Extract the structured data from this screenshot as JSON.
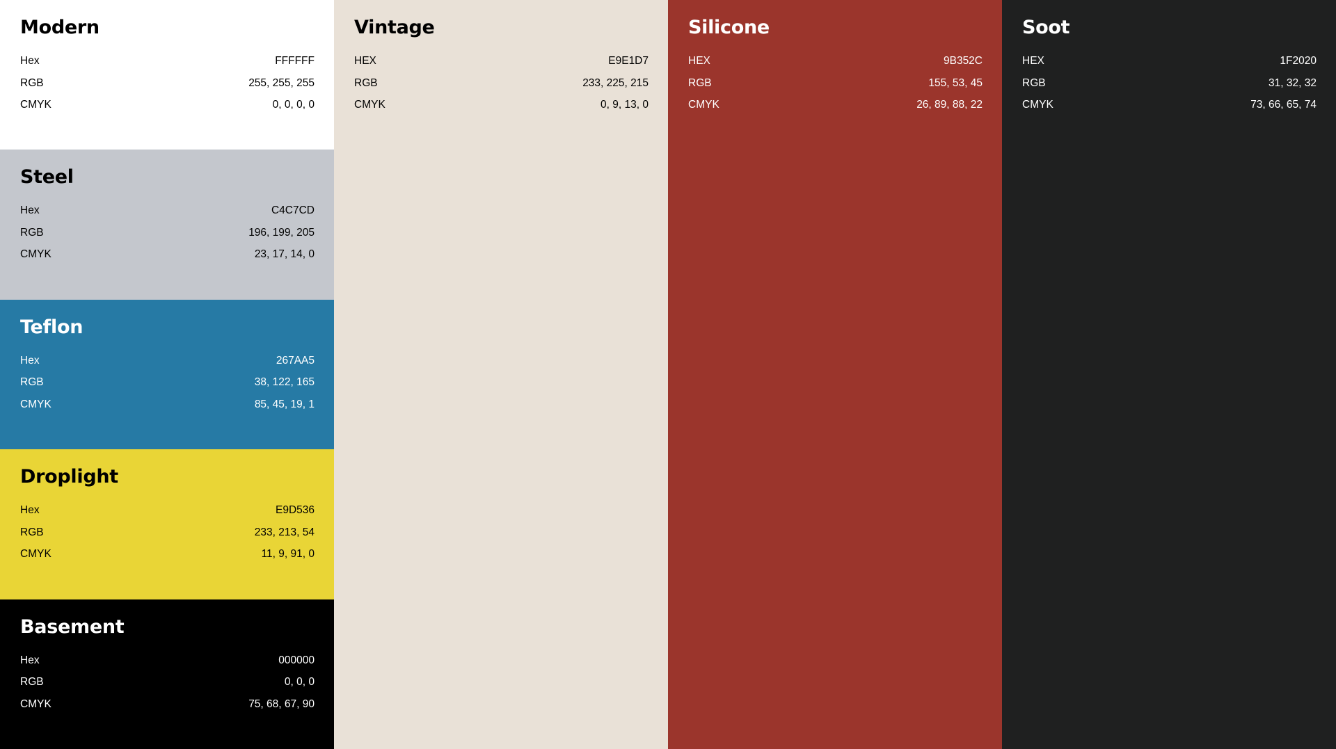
{
  "columns": [
    {
      "swatches": [
        {
          "name": "Modern",
          "bg": "#FFFFFF",
          "fg": "#000000",
          "rows": [
            {
              "label": "Hex",
              "value": "FFFFFF"
            },
            {
              "label": "RGB",
              "value": "255, 255, 255"
            },
            {
              "label": "CMYK",
              "value": "0, 0, 0, 0"
            }
          ]
        },
        {
          "name": "Steel",
          "bg": "#C4C7CD",
          "fg": "#000000",
          "rows": [
            {
              "label": "Hex",
              "value": "C4C7CD"
            },
            {
              "label": "RGB",
              "value": "196, 199, 205"
            },
            {
              "label": "CMYK",
              "value": "23, 17, 14, 0"
            }
          ]
        },
        {
          "name": "Teflon",
          "bg": "#267AA5",
          "fg": "#FFFFFF",
          "rows": [
            {
              "label": "Hex",
              "value": "267AA5"
            },
            {
              "label": "RGB",
              "value": "38, 122, 165"
            },
            {
              "label": "CMYK",
              "value": "85, 45, 19, 1"
            }
          ]
        },
        {
          "name": "Droplight",
          "bg": "#E9D536",
          "fg": "#000000",
          "rows": [
            {
              "label": "Hex",
              "value": "E9D536"
            },
            {
              "label": "RGB",
              "value": "233, 213, 54"
            },
            {
              "label": "CMYK",
              "value": "11, 9, 91, 0"
            }
          ]
        },
        {
          "name": "Basement",
          "bg": "#000000",
          "fg": "#FFFFFF",
          "rows": [
            {
              "label": "Hex",
              "value": "000000"
            },
            {
              "label": "RGB",
              "value": "0, 0, 0"
            },
            {
              "label": "CMYK",
              "value": "75, 68, 67, 90"
            }
          ]
        }
      ]
    },
    {
      "swatches": [
        {
          "name": "Vintage",
          "bg": "#E9E1D7",
          "fg": "#000000",
          "rows": [
            {
              "label": "HEX",
              "value": "E9E1D7"
            },
            {
              "label": "RGB",
              "value": "233, 225, 215"
            },
            {
              "label": "CMYK",
              "value": "0, 9, 13, 0"
            }
          ]
        }
      ]
    },
    {
      "swatches": [
        {
          "name": "Silicone",
          "bg": "#9B352C",
          "fg": "#FFFFFF",
          "rows": [
            {
              "label": "HEX",
              "value": "9B352C"
            },
            {
              "label": "RGB",
              "value": "155, 53, 45"
            },
            {
              "label": "CMYK",
              "value": "26, 89, 88, 22"
            }
          ]
        }
      ]
    },
    {
      "swatches": [
        {
          "name": "Soot",
          "bg": "#1F2020",
          "fg": "#FFFFFF",
          "rows": [
            {
              "label": "HEX",
              "value": "1F2020"
            },
            {
              "label": "RGB",
              "value": "31, 32, 32"
            },
            {
              "label": "CMYK",
              "value": "73, 66, 65, 74"
            }
          ]
        }
      ]
    }
  ]
}
